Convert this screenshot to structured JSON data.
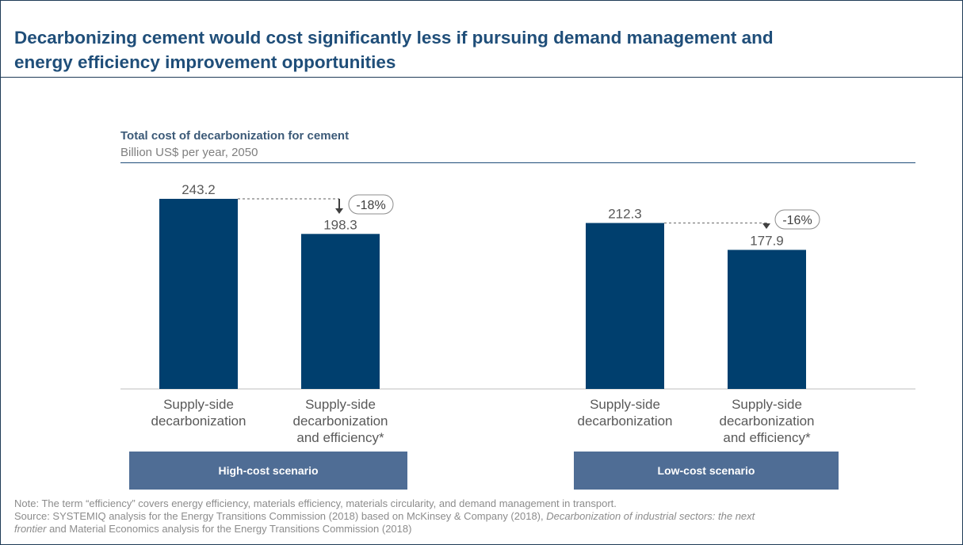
{
  "title": {
    "line1": "Decarbonizing cement would cost significantly less if pursuing demand management and",
    "line2": "energy efficiency improvement opportunities"
  },
  "colors": {
    "bar": "#003f6e",
    "title": "#1f4e79",
    "scenario_box": "#4f6d95",
    "note_text": "#8c8c8c"
  },
  "chart_data": {
    "type": "bar",
    "title": "Total cost of decarbonization for cement",
    "subtitle": "Billion US$ per year, 2050",
    "groups": [
      {
        "name": "High-cost scenario",
        "bars": [
          {
            "label_lines": [
              "Supply-side",
              "decarbonization"
            ],
            "value": 243.2,
            "value_label": "243.2"
          },
          {
            "label_lines": [
              "Supply-side",
              "decarbonization",
              "and efficiency*"
            ],
            "value": 198.3,
            "value_label": "198.3"
          }
        ],
        "change": "-18%"
      },
      {
        "name": "Low-cost scenario",
        "bars": [
          {
            "label_lines": [
              "Supply-side",
              "decarbonization"
            ],
            "value": 212.3,
            "value_label": "212.3"
          },
          {
            "label_lines": [
              "Supply-side",
              "decarbonization",
              "and efficiency*"
            ],
            "value": 177.9,
            "value_label": "177.9"
          }
        ],
        "change": "-16%"
      }
    ]
  },
  "notes": {
    "line1": "Note: The term “efficiency” covers energy efficiency, materials efficiency, materials circularity, and demand management in transport.",
    "line2a": "Source: SYSTEMIQ analysis for the Energy Transitions Commission (2018) based on McKinsey & Company (2018), ",
    "line2b": "Decarbonization of industrial sectors: the next",
    "line3a": "frontier",
    "line3b": " and Material Economics analysis for the Energy Transitions Commission (2018)"
  }
}
